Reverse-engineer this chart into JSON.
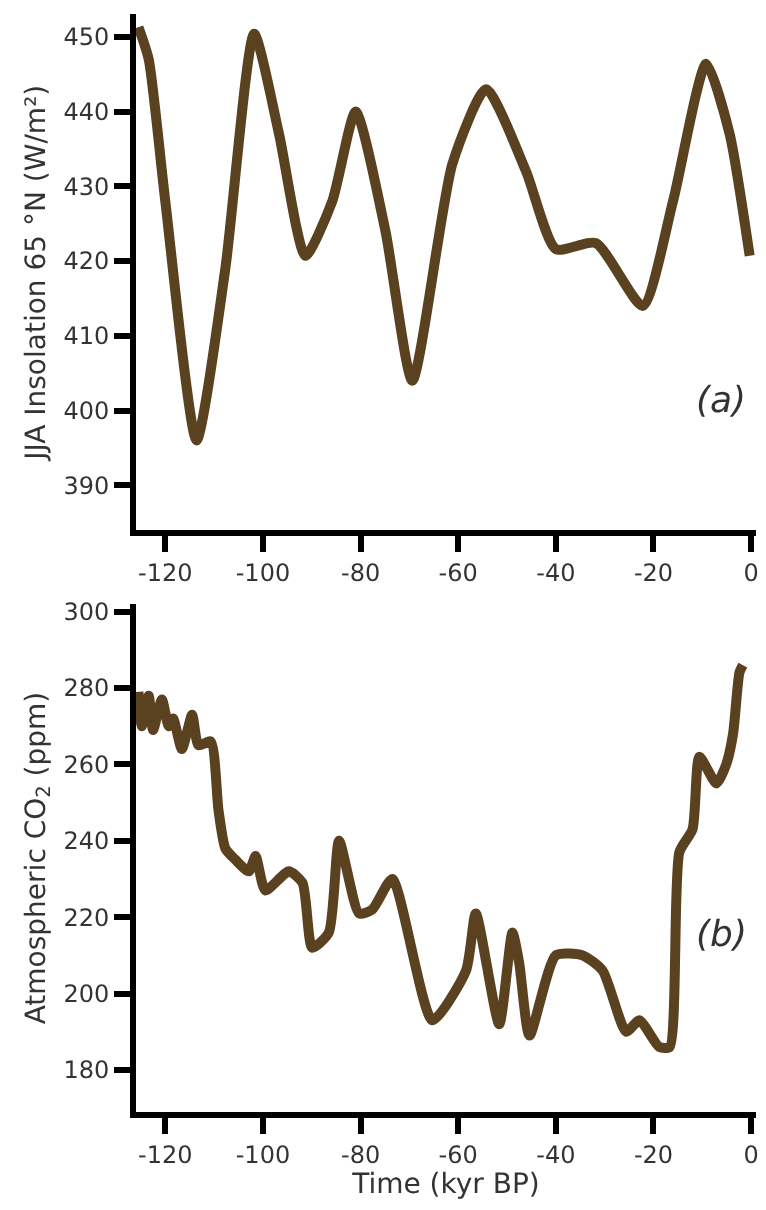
{
  "chart_data": [
    {
      "type": "line",
      "ylabel": "JJA Insolation 65 °N (W/m²)",
      "annotations": [
        "(a)"
      ],
      "xlim": [
        -126,
        1
      ],
      "xticks": [
        -120,
        -100,
        -80,
        -60,
        -40,
        -20,
        0
      ],
      "ylim": [
        384,
        453
      ],
      "yticks": [
        390,
        400,
        410,
        420,
        430,
        440,
        450
      ],
      "series": [
        {
          "color": "#5a4120",
          "x": [
            -125.5,
            -123.4,
            -120,
            -113.6,
            -107.7,
            -101.8,
            -96.7,
            -91.3,
            -85.8,
            -81,
            -74.9,
            -69.4,
            -61.2,
            -54.3,
            -46.1,
            -40,
            -31.8,
            -22.2,
            -16,
            -9.2,
            -4.4,
            -0.3
          ],
          "values": [
            451.3,
            447,
            428,
            396,
            419,
            450.4,
            437,
            420.7,
            428,
            440,
            424,
            404,
            433,
            443,
            432,
            421.6,
            422.4,
            414,
            428,
            446.4,
            437,
            420.7
          ]
        }
      ]
    },
    {
      "type": "line",
      "xlabel": "Time (kyr BP)",
      "ylabel": "Atmospheric CO$_{2}$ (ppm)",
      "annotations": [
        "(b)"
      ],
      "xlim": [
        -126,
        1
      ],
      "xticks": [
        -120,
        -100,
        -80,
        -60,
        -40,
        -20,
        0
      ],
      "ylim": [
        169,
        302
      ],
      "yticks": [
        180,
        200,
        220,
        240,
        260,
        280,
        300
      ],
      "series": [
        {
          "color": "#5a4120",
          "x": [
            -125.5,
            -124.8,
            -123.4,
            -122.5,
            -120.7,
            -119.3,
            -118.4,
            -116.6,
            -114.5,
            -113.2,
            -110.7,
            -109.1,
            -107.7,
            -105.6,
            -102.9,
            -101.5,
            -99.5,
            -94.7,
            -91.9,
            -89.9,
            -86.5,
            -84.4,
            -80.3,
            -77.6,
            -73.5,
            -65.3,
            -58.4,
            -56.4,
            -51.6,
            -48.9,
            -47.5,
            -45.4,
            -40,
            -34.5,
            -30.4,
            -25.6,
            -22.9,
            -18.8,
            -16.7,
            -14.7,
            -12,
            -10.6,
            -7.1,
            -5.1,
            -3.7,
            -2.4,
            -1.7
          ],
          "values": [
            279,
            270,
            278,
            269,
            277,
            270,
            272,
            264,
            273,
            265,
            266,
            248,
            238,
            235,
            232,
            236,
            227,
            232,
            229,
            212,
            216,
            240,
            221,
            222,
            230,
            193,
            206,
            221,
            192,
            216,
            208,
            189,
            210,
            210,
            206,
            190,
            193,
            186,
            186,
            237,
            243,
            262,
            255,
            260,
            268,
            284,
            286
          ]
        }
      ]
    }
  ]
}
